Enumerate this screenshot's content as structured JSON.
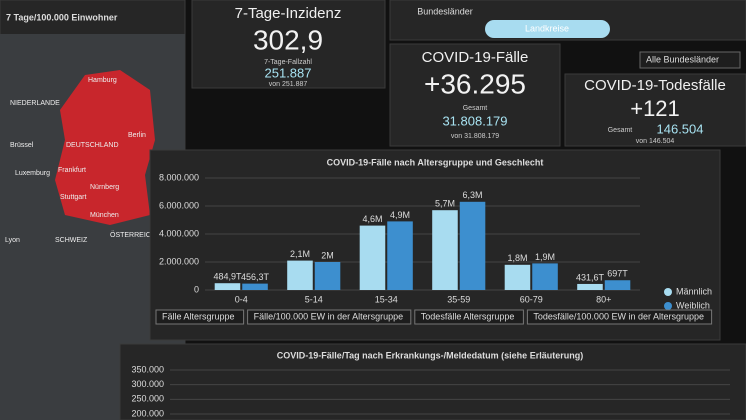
{
  "map": {
    "title": "7 Tage/100.000 Einwohner",
    "labels": [
      "Hamburg",
      "NIEDERLANDE",
      "Berlin",
      "DEUTSCHLAND",
      "Brüssel",
      "Luxemburg",
      "Frankfurt",
      "Nürnberg",
      "Stuttgart",
      "München",
      "SCHWEIZ",
      "ÖSTERREICH",
      "Lyon"
    ]
  },
  "tabs": {
    "active": "Landkreise",
    "other": "Bundesländer",
    "dropdown": "Alle Bundesländer"
  },
  "cards": [
    {
      "title": "7-Tage-Inzidenz",
      "value": "302,9",
      "sub_label": "7-Tage-Fallzahl",
      "sub_value": "251.887",
      "note": "von 251.887"
    },
    {
      "title": "COVID-19-Fälle",
      "value": "+36.295",
      "sub_label": "Gesamt",
      "sub_value": "31.808.179",
      "note": "von 31.808.179"
    },
    {
      "title": "COVID-19-Todesfälle",
      "value": "+121",
      "sub_label": "Gesamt",
      "sub_value": "146.504",
      "note": "von 146.504"
    }
  ],
  "chart_data": [
    {
      "type": "bar",
      "title": "COVID-19-Fälle nach Altersgruppe und Geschlecht",
      "categories": [
        "0-4",
        "5-14",
        "15-34",
        "35-59",
        "60-79",
        "80+"
      ],
      "series": [
        {
          "name": "Männlich",
          "color": "#a8dcf0",
          "values": [
            484900,
            2100000,
            4600000,
            5700000,
            1800000,
            431600
          ],
          "value_labels": [
            "484,9T",
            "2,1M",
            "4,6M",
            "5,7M",
            "1,8M",
            "431,6T"
          ]
        },
        {
          "name": "Weiblich",
          "color": "#3d8fcf",
          "values": [
            456300,
            2000000,
            4900000,
            6300000,
            1900000,
            697000
          ],
          "value_labels": [
            "456,3T",
            "2M",
            "4,9M",
            "6,3M",
            "1,9M",
            "697T"
          ]
        }
      ],
      "ylim": [
        0,
        8000000
      ],
      "yticks": [
        0,
        {
          "value": 2000000,
          "label": "2.000.000"
        },
        {
          "value": 4000000,
          "label": "4.000.000"
        },
        {
          "value": 6000000,
          "label": "6.000.000"
        },
        {
          "value": 8000000,
          "label": "8.000.000"
        }
      ],
      "grid": true,
      "tabs": [
        "Fälle Altersgruppe",
        "Fälle/100.000 EW in der Altersgruppe",
        "Todesfälle Altersgruppe",
        "Todesfälle/100.000 EW in der Altersgruppe"
      ]
    },
    {
      "type": "line",
      "title": "COVID-19-Fälle/Tag nach Erkrankungs-/Meldedatum (siehe Erläuterung)",
      "ylim": [
        200000,
        350000
      ],
      "yticks": [
        {
          "value": 350000,
          "label": "350.000"
        },
        {
          "value": 300000,
          "label": "300.000"
        },
        {
          "value": 250000,
          "label": "250.000"
        },
        {
          "value": 200000,
          "label": "200.000"
        }
      ],
      "grid": true
    }
  ]
}
